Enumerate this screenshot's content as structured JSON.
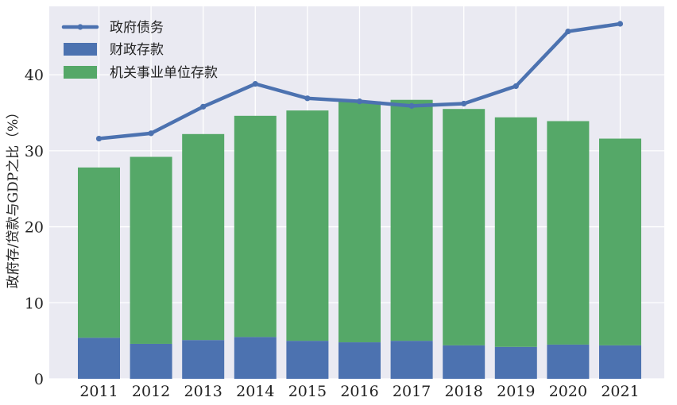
{
  "chart_data": {
    "type": "bar",
    "stacked": true,
    "categories": [
      "2011",
      "2012",
      "2013",
      "2014",
      "2015",
      "2016",
      "2017",
      "2018",
      "2019",
      "2020",
      "2021"
    ],
    "series": [
      {
        "name": "财政存款",
        "kind": "bar",
        "color": "#4c72b0",
        "values": [
          5.4,
          4.6,
          5.1,
          5.5,
          5.0,
          4.8,
          5.0,
          4.4,
          4.2,
          4.5,
          4.4
        ]
      },
      {
        "name": "机关事业单位存款",
        "kind": "bar",
        "color": "#55a868",
        "values": [
          22.4,
          24.6,
          27.1,
          29.1,
          30.3,
          31.7,
          31.7,
          31.1,
          30.2,
          29.4,
          27.2
        ]
      },
      {
        "name": "政府债务",
        "kind": "line",
        "color": "#4c72b0",
        "values": [
          31.6,
          32.3,
          35.8,
          38.8,
          36.9,
          36.5,
          35.9,
          36.2,
          38.5,
          45.7,
          46.7
        ]
      }
    ],
    "legend_order": [
      "政府债务",
      "财政存款",
      "机关事业单位存款"
    ],
    "ylabel": "政府存/贷款与GDP之比（%）",
    "xlabel": "",
    "ylim": [
      0,
      49
    ],
    "yticks": [
      0,
      10,
      20,
      30,
      40
    ],
    "grid": true,
    "legend_position": "top-left",
    "colors": {
      "background": "#eaeaf2",
      "grid": "#ffffff"
    }
  }
}
